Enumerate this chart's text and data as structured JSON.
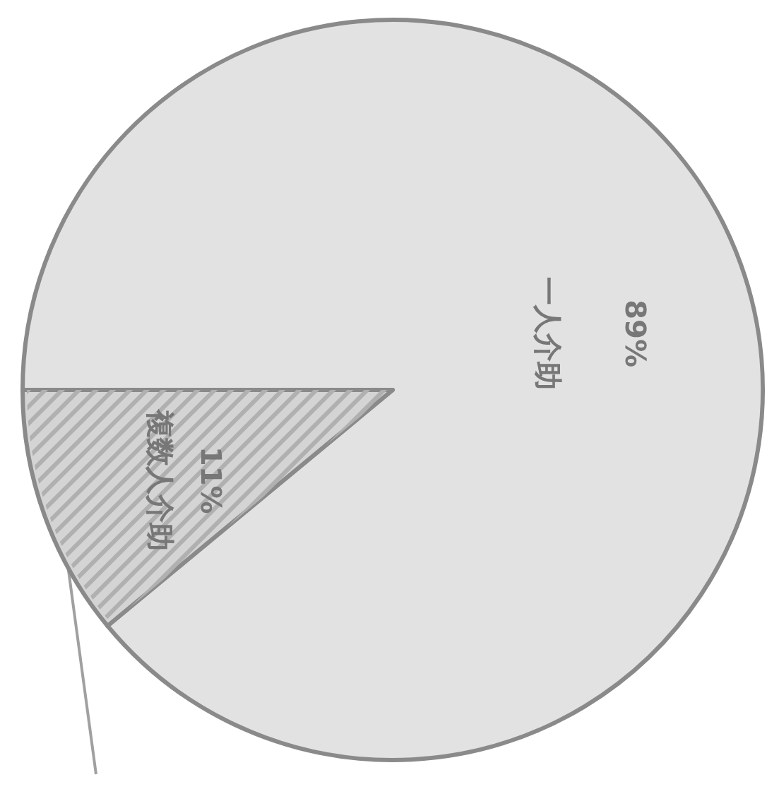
{
  "chart_data": {
    "type": "pie",
    "categories": [
      "一人介助",
      "複数人介助"
    ],
    "values": [
      89,
      11
    ],
    "colors": [
      "#e2e2e2",
      "#d4d4d4"
    ],
    "value_labels": [
      "89%",
      "11%"
    ]
  }
}
